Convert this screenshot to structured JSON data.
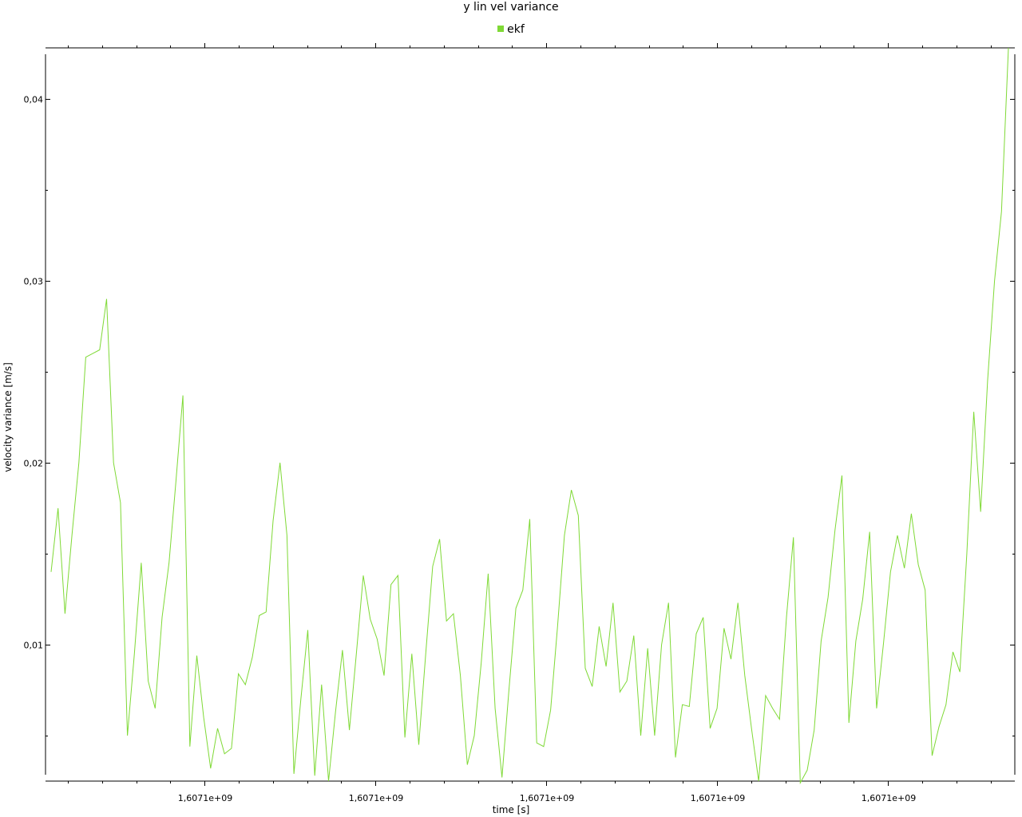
{
  "chart_data": {
    "type": "line",
    "title": "y lin vel variance",
    "xlabel": "time [s]",
    "ylabel": "velocity variance [m/s]",
    "x_tick_labels": [
      "1,6071e+09",
      "1,6071e+09",
      "1,6071e+09",
      "1,6071e+09",
      "1,6071e+09"
    ],
    "y_ticks": [
      0.01,
      0.02,
      0.03,
      0.04
    ],
    "y_tick_labels": [
      "0,01",
      "0,02",
      "0,03",
      "0,04"
    ],
    "ylim": [
      0.0025,
      0.0428
    ],
    "grid": false,
    "legend_position": "top-center",
    "series": [
      {
        "name": "ekf",
        "color": "#7fd936",
        "values": [
          0.014,
          0.0175,
          0.0117,
          0.016,
          0.02,
          0.0258,
          0.026,
          0.0262,
          0.029,
          0.02,
          0.0178,
          0.005,
          0.0095,
          0.0145,
          0.008,
          0.0065,
          0.0115,
          0.0145,
          0.019,
          0.0237,
          0.0044,
          0.0094,
          0.006,
          0.0032,
          0.0054,
          0.004,
          0.0043,
          0.0084,
          0.0078,
          0.0093,
          0.0116,
          0.0118,
          0.0168,
          0.02,
          0.016,
          0.0029,
          0.007,
          0.0108,
          0.0028,
          0.0078,
          0.0025,
          0.0063,
          0.0097,
          0.0053,
          0.0095,
          0.0138,
          0.0114,
          0.0103,
          0.0083,
          0.0133,
          0.0138,
          0.0049,
          0.0095,
          0.0045,
          0.0095,
          0.0143,
          0.0158,
          0.0113,
          0.0117,
          0.0083,
          0.0034,
          0.005,
          0.009,
          0.0139,
          0.0065,
          0.0027,
          0.0075,
          0.012,
          0.013,
          0.0169,
          0.0046,
          0.0044,
          0.0064,
          0.011,
          0.016,
          0.0185,
          0.0171,
          0.0087,
          0.0077,
          0.011,
          0.0088,
          0.0123,
          0.0074,
          0.008,
          0.0105,
          0.005,
          0.0098,
          0.005,
          0.01,
          0.0123,
          0.0038,
          0.0067,
          0.0066,
          0.0106,
          0.0115,
          0.0054,
          0.0065,
          0.0109,
          0.0092,
          0.0123,
          0.0083,
          0.0053,
          0.0025,
          0.0072,
          0.0065,
          0.0059,
          0.0115,
          0.0159,
          0.0024,
          0.0031,
          0.0053,
          0.0102,
          0.0126,
          0.0163,
          0.0193,
          0.0057,
          0.0102,
          0.0125,
          0.0162,
          0.0065,
          0.0101,
          0.014,
          0.016,
          0.0142,
          0.0172,
          0.0144,
          0.013,
          0.0039,
          0.0055,
          0.0067,
          0.0096,
          0.0085,
          0.015,
          0.0228,
          0.0173,
          0.0245,
          0.03,
          0.0338,
          0.0428
        ]
      }
    ]
  }
}
